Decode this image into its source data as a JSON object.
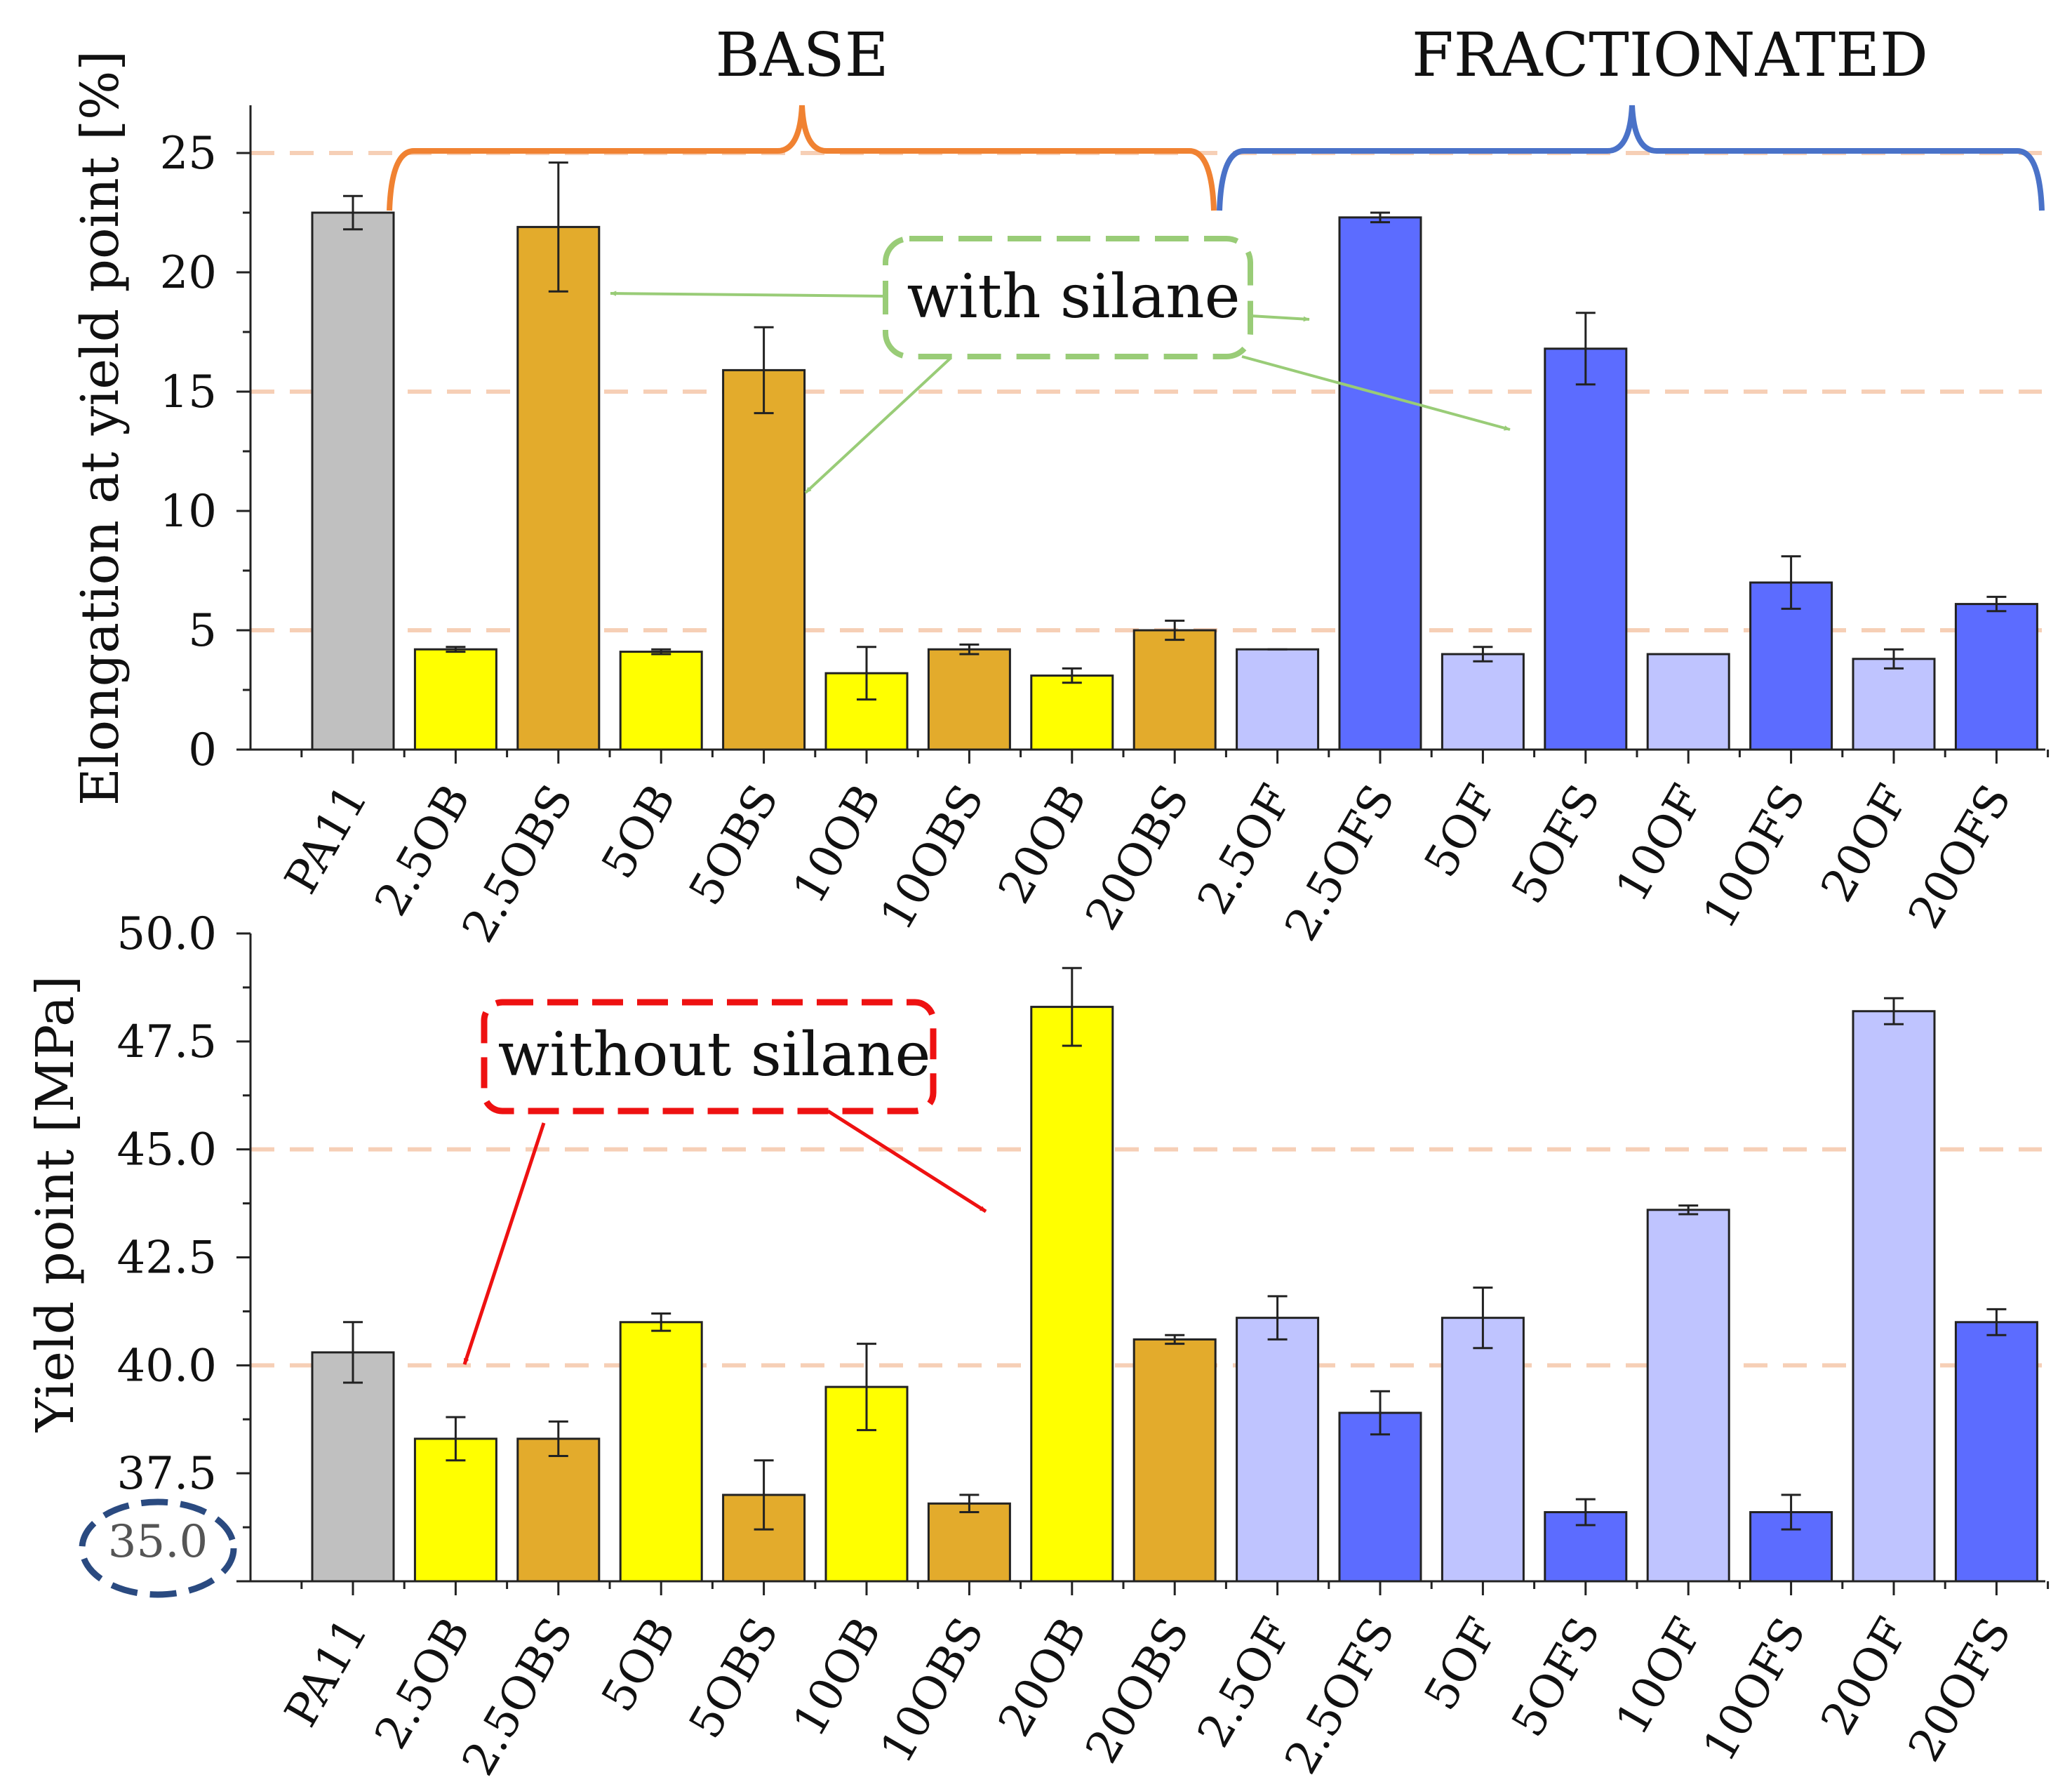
{
  "colors": {
    "PA11": "#c0c0c0",
    "OB": "#ffff00",
    "OBS": "#e3ab2c",
    "OF": "#bfc4ff",
    "OFS": "#5c6cff",
    "base_bracket": "#f08232",
    "fract_bracket": "#4a72c8",
    "with_silane": "#99cc77",
    "without_silane": "#ee1111",
    "zero_circle": "#2a4a80",
    "guide": "#f6cfb6"
  },
  "group_labels": {
    "base": "BASE",
    "fractionated": "FRACTIONATED"
  },
  "annotations": {
    "with_silane": "with silane",
    "without_silane": "without silane"
  },
  "chart_data": [
    {
      "type": "bar",
      "title": "",
      "xlabel": "",
      "ylabel": "Elongation at yield point [%]",
      "ylim": [
        0,
        27
      ],
      "yticks": [
        0,
        5,
        10,
        15,
        20,
        25
      ],
      "ytick_labels": [
        "0",
        "5",
        "10",
        "15",
        "20",
        "25"
      ],
      "guide_lines": [
        5,
        15,
        25
      ],
      "categories": [
        "PA11",
        "2.5OB",
        "2.5OBS",
        "5OB",
        "5OBS",
        "10OB",
        "10OBS",
        "20OB",
        "20OBS",
        "2.5OF",
        "2.5OFS",
        "5OF",
        "5OFS",
        "10OF",
        "10OFS",
        "20OF",
        "20OFS"
      ],
      "values": [
        22.5,
        4.2,
        21.9,
        4.1,
        15.9,
        3.2,
        4.2,
        3.1,
        5.0,
        4.2,
        22.3,
        4.0,
        16.8,
        4.0,
        7.0,
        3.8,
        6.1
      ],
      "errors": [
        0.7,
        0.1,
        2.7,
        0.1,
        1.8,
        1.1,
        0.2,
        0.3,
        0.4,
        0,
        0.2,
        0.3,
        1.5,
        0,
        1.1,
        0.4,
        0.3
      ]
    },
    {
      "type": "bar",
      "title": "",
      "xlabel": "",
      "ylabel": "Yield point [MPa]",
      "ylim": [
        35,
        50
      ],
      "yticks": [
        37.5,
        40,
        42.5,
        45,
        47.5,
        50
      ],
      "ytick_labels": [
        "37.5",
        "40.0",
        "42.5",
        "45.0",
        "47.5",
        "50.0"
      ],
      "baseline_label": "35.0",
      "guide_lines": [
        40,
        45
      ],
      "categories": [
        "PA11",
        "2.5OB",
        "2.5OBS",
        "5OB",
        "5OBS",
        "10OB",
        "10OBS",
        "20OB",
        "20OBS",
        "2.5OF",
        "2.5OFS",
        "5OF",
        "5OFS",
        "10OF",
        "10OFS",
        "20OF",
        "20OFS"
      ],
      "values": [
        40.3,
        38.3,
        38.3,
        41.0,
        37.0,
        39.5,
        36.8,
        48.3,
        40.6,
        41.1,
        38.9,
        41.1,
        36.6,
        43.6,
        36.6,
        48.2,
        41.0
      ],
      "errors": [
        0.7,
        0.5,
        0.4,
        0.2,
        0.8,
        1.0,
        0.2,
        0.9,
        0.1,
        0.5,
        0.5,
        0.7,
        0.3,
        0.1,
        0.4,
        0.3,
        0.3
      ]
    }
  ]
}
